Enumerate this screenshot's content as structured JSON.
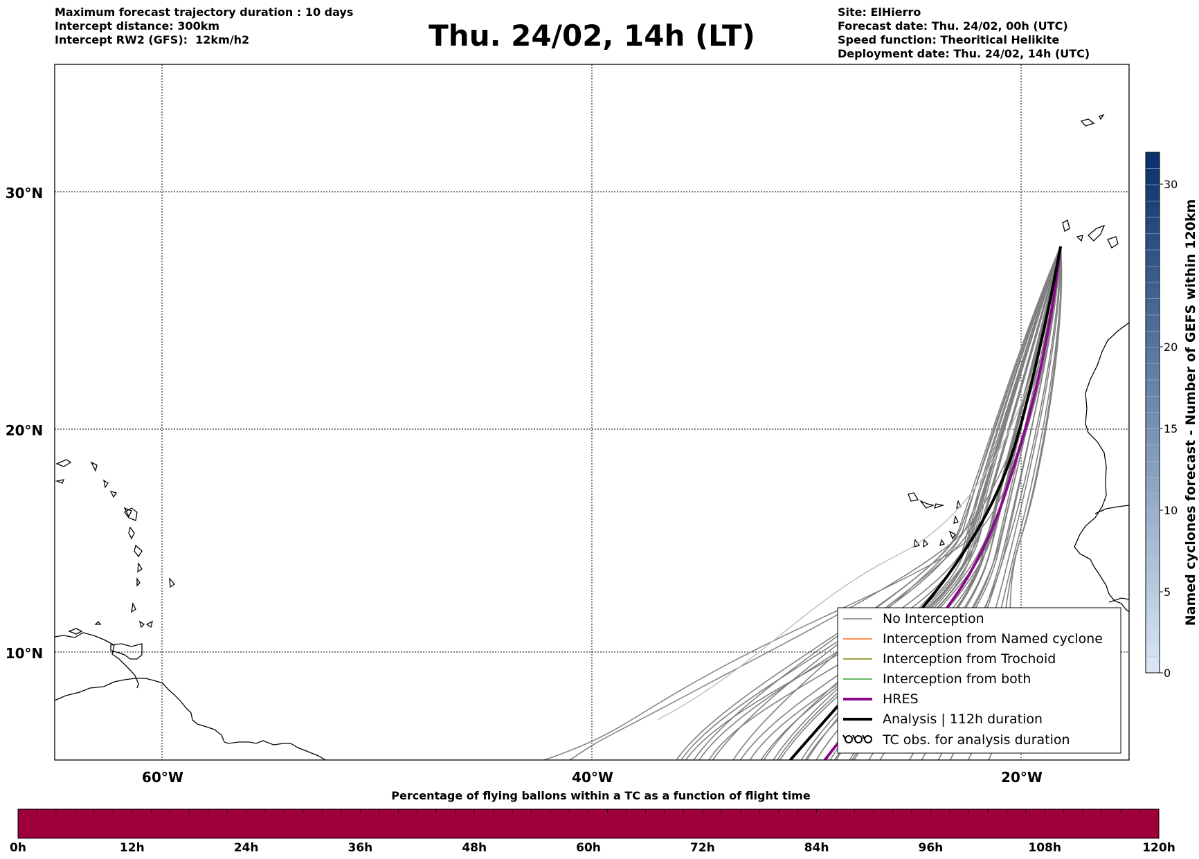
{
  "header": {
    "left_lines": [
      "Maximum forecast trajectory duration : 10 days",
      "Intercept distance: 300km",
      "Intercept RW2 (GFS):  12km/h2"
    ],
    "title": "Thu. 24/02, 14h (LT)",
    "right_lines": [
      "Site: ElHierro",
      "Forecast date: Thu. 24/02, 00h (UTC)",
      "Speed function: Theoritical Helikite",
      "Deployment date: Thu. 24/02, 14h (UTC)"
    ]
  },
  "map": {
    "lon_range": [
      -65,
      -15
    ],
    "lat_range": [
      5,
      35
    ],
    "lat_labels": [
      "30°N",
      "20°N",
      "10°N"
    ],
    "lon_labels": [
      "60°W",
      "40°W",
      "20°W"
    ],
    "launch_site": "ElHierro"
  },
  "legend": {
    "placement": "lower-right",
    "entries": [
      {
        "label": "No Interception",
        "color": "#808080"
      },
      {
        "label": "Interception from Named cyclone",
        "color": "#ff6a1a"
      },
      {
        "label": "Interception from Trochoid",
        "color": "#808000"
      },
      {
        "label": "Interception from both",
        "color": "#2ca02c"
      },
      {
        "label": "HRES",
        "color": "#8b0a8b"
      },
      {
        "label": "Analysis | 112h duration",
        "color": "#000000"
      },
      {
        "label": "TC obs. for analysis duration",
        "symbol": "cyclone-icon",
        "color": "#000000"
      }
    ]
  },
  "colorbar_right": {
    "label": "Named cyclones forecast - Number of GEFS within 120km",
    "ticks": [
      "0",
      "5",
      "10",
      "15",
      "20",
      "30"
    ],
    "colors": [
      "#dae8f5",
      "#08306b"
    ]
  },
  "colorbar_bottom": {
    "title": "Percentage of flying ballons within a TC as a function of flight time",
    "ticks": [
      "0h",
      "12h",
      "24h",
      "36h",
      "48h",
      "60h",
      "72h",
      "84h",
      "96h",
      "108h",
      "120h"
    ],
    "color": "#9e003a"
  }
}
